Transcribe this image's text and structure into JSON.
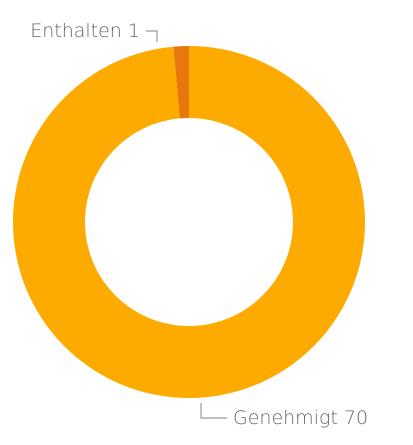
{
  "chart_data": {
    "type": "donut",
    "categories": [
      "Genehmigt",
      "Enthalten"
    ],
    "values": [
      70,
      1
    ],
    "colors": [
      "#fdab00",
      "#e8780c"
    ]
  }
}
